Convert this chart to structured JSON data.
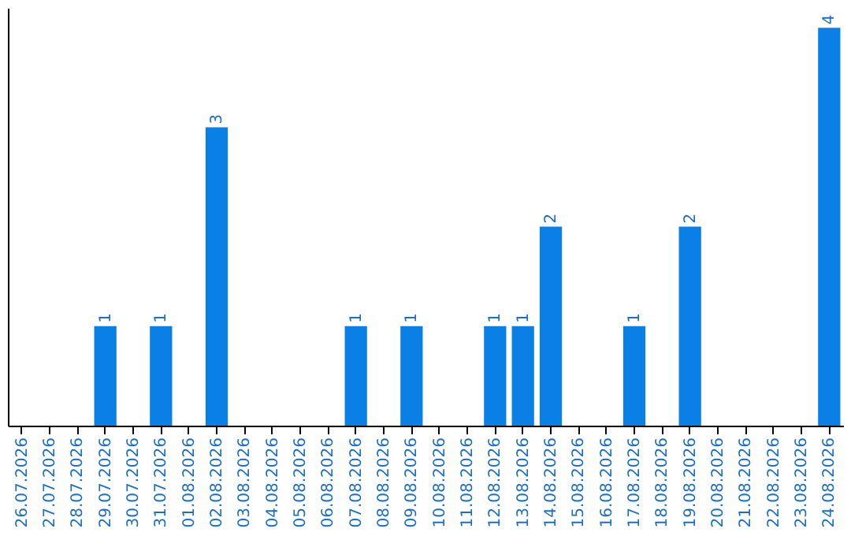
{
  "chart_data": {
    "type": "bar",
    "categories": [
      "26.07.2026",
      "27.07.2026",
      "28.07.2026",
      "29.07.2026",
      "30.07.2026",
      "31.07.2026",
      "01.08.2026",
      "02.08.2026",
      "03.08.2026",
      "04.08.2026",
      "05.08.2026",
      "06.08.2026",
      "07.08.2026",
      "08.08.2026",
      "09.08.2026",
      "10.08.2026",
      "11.08.2026",
      "12.08.2026",
      "13.08.2026",
      "14.08.2026",
      "15.08.2026",
      "16.08.2026",
      "17.08.2026",
      "18.08.2026",
      "19.08.2026",
      "20.08.2026",
      "21.08.2026",
      "22.08.2026",
      "23.08.2026",
      "24.08.2026"
    ],
    "values": [
      null,
      null,
      null,
      1,
      null,
      1,
      null,
      3,
      null,
      null,
      null,
      null,
      1,
      null,
      1,
      null,
      null,
      1,
      1,
      2,
      null,
      null,
      1,
      null,
      2,
      null,
      null,
      null,
      null,
      4
    ],
    "color": "#0a7fe6",
    "ylim": [
      0,
      4.2
    ],
    "data_labels": true,
    "tick_labels": "x"
  }
}
